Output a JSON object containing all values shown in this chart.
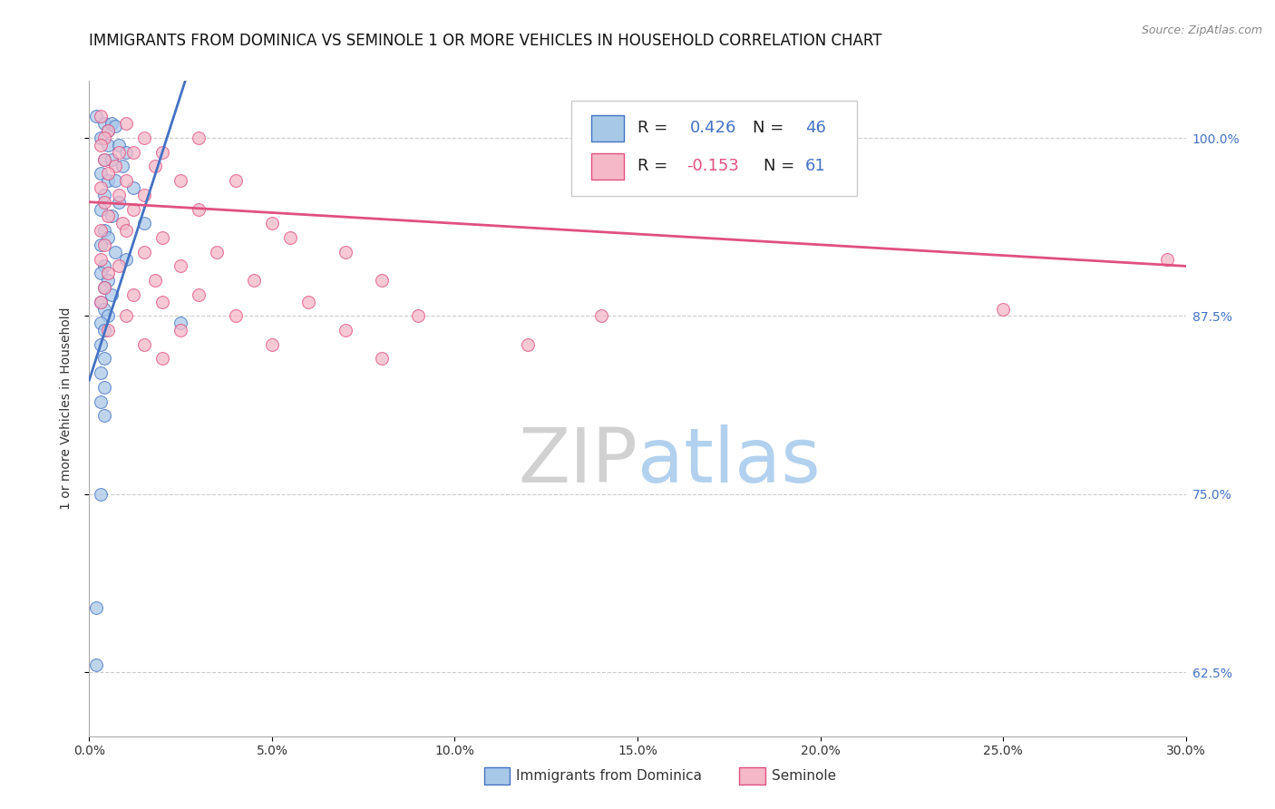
{
  "title": "IMMIGRANTS FROM DOMINICA VS SEMINOLE 1 OR MORE VEHICLES IN HOUSEHOLD CORRELATION CHART",
  "source": "Source: ZipAtlas.com",
  "ylabel": "1 or more Vehicles in Household",
  "legend_label1": "Immigrants from Dominica",
  "legend_label2": "Seminole",
  "R1": 0.426,
  "N1": 46,
  "R2": -0.153,
  "N2": 61,
  "xlim": [
    0.0,
    30.0
  ],
  "ylim": [
    58.0,
    104.0
  ],
  "xtick_labels": [
    "0.0%",
    "5.0%",
    "10.0%",
    "15.0%",
    "20.0%",
    "25.0%",
    "30.0%"
  ],
  "xtick_vals": [
    0.0,
    5.0,
    10.0,
    15.0,
    20.0,
    25.0,
    30.0
  ],
  "ytick_labels": [
    "62.5%",
    "75.0%",
    "87.5%",
    "100.0%"
  ],
  "ytick_vals": [
    62.5,
    75.0,
    87.5,
    100.0
  ],
  "color_blue": "#a8c8e8",
  "color_pink": "#f4b8c8",
  "line_blue": "#4472c4",
  "line_pink": "#e05080",
  "blue_scatter": [
    [
      0.2,
      101.5
    ],
    [
      0.4,
      101.0
    ],
    [
      0.5,
      100.5
    ],
    [
      0.6,
      101.0
    ],
    [
      0.7,
      100.8
    ],
    [
      0.3,
      100.0
    ],
    [
      0.5,
      99.5
    ],
    [
      0.8,
      99.5
    ],
    [
      1.0,
      99.0
    ],
    [
      0.4,
      98.5
    ],
    [
      0.6,
      98.5
    ],
    [
      0.9,
      98.0
    ],
    [
      0.3,
      97.5
    ],
    [
      0.5,
      97.0
    ],
    [
      0.7,
      97.0
    ],
    [
      1.2,
      96.5
    ],
    [
      0.4,
      96.0
    ],
    [
      0.8,
      95.5
    ],
    [
      0.3,
      95.0
    ],
    [
      0.6,
      94.5
    ],
    [
      1.5,
      94.0
    ],
    [
      0.4,
      93.5
    ],
    [
      0.5,
      93.0
    ],
    [
      0.3,
      92.5
    ],
    [
      0.7,
      92.0
    ],
    [
      1.0,
      91.5
    ],
    [
      0.4,
      91.0
    ],
    [
      0.3,
      90.5
    ],
    [
      0.5,
      90.0
    ],
    [
      0.4,
      89.5
    ],
    [
      0.6,
      89.0
    ],
    [
      0.3,
      88.5
    ],
    [
      0.4,
      88.0
    ],
    [
      0.5,
      87.5
    ],
    [
      0.3,
      87.0
    ],
    [
      2.5,
      87.0
    ],
    [
      0.4,
      86.5
    ],
    [
      0.3,
      85.5
    ],
    [
      0.4,
      84.5
    ],
    [
      0.3,
      83.5
    ],
    [
      0.4,
      82.5
    ],
    [
      0.3,
      81.5
    ],
    [
      0.4,
      80.5
    ],
    [
      0.3,
      75.0
    ],
    [
      0.2,
      67.0
    ],
    [
      0.2,
      63.0
    ]
  ],
  "pink_scatter": [
    [
      0.3,
      101.5
    ],
    [
      1.0,
      101.0
    ],
    [
      0.5,
      100.5
    ],
    [
      0.4,
      100.0
    ],
    [
      1.5,
      100.0
    ],
    [
      3.0,
      100.0
    ],
    [
      0.3,
      99.5
    ],
    [
      0.8,
      99.0
    ],
    [
      1.2,
      99.0
    ],
    [
      2.0,
      99.0
    ],
    [
      0.4,
      98.5
    ],
    [
      0.7,
      98.0
    ],
    [
      1.8,
      98.0
    ],
    [
      0.5,
      97.5
    ],
    [
      1.0,
      97.0
    ],
    [
      2.5,
      97.0
    ],
    [
      4.0,
      97.0
    ],
    [
      0.3,
      96.5
    ],
    [
      0.8,
      96.0
    ],
    [
      1.5,
      96.0
    ],
    [
      0.4,
      95.5
    ],
    [
      1.2,
      95.0
    ],
    [
      3.0,
      95.0
    ],
    [
      0.5,
      94.5
    ],
    [
      0.9,
      94.0
    ],
    [
      5.0,
      94.0
    ],
    [
      0.3,
      93.5
    ],
    [
      1.0,
      93.5
    ],
    [
      2.0,
      93.0
    ],
    [
      5.5,
      93.0
    ],
    [
      0.4,
      92.5
    ],
    [
      1.5,
      92.0
    ],
    [
      3.5,
      92.0
    ],
    [
      7.0,
      92.0
    ],
    [
      0.3,
      91.5
    ],
    [
      0.8,
      91.0
    ],
    [
      2.5,
      91.0
    ],
    [
      0.5,
      90.5
    ],
    [
      1.8,
      90.0
    ],
    [
      4.5,
      90.0
    ],
    [
      8.0,
      90.0
    ],
    [
      0.4,
      89.5
    ],
    [
      1.2,
      89.0
    ],
    [
      3.0,
      89.0
    ],
    [
      0.3,
      88.5
    ],
    [
      2.0,
      88.5
    ],
    [
      6.0,
      88.5
    ],
    [
      1.0,
      87.5
    ],
    [
      4.0,
      87.5
    ],
    [
      9.0,
      87.5
    ],
    [
      0.5,
      86.5
    ],
    [
      2.5,
      86.5
    ],
    [
      7.0,
      86.5
    ],
    [
      1.5,
      85.5
    ],
    [
      5.0,
      85.5
    ],
    [
      12.0,
      85.5
    ],
    [
      2.0,
      84.5
    ],
    [
      8.0,
      84.5
    ],
    [
      14.0,
      87.5
    ],
    [
      25.0,
      88.0
    ],
    [
      29.5,
      91.5
    ]
  ],
  "watermark_zip": "ZIP",
  "watermark_atlas": "atlas",
  "background_color": "#ffffff",
  "grid_color": "#cccccc",
  "title_fontsize": 12,
  "axis_label_fontsize": 10,
  "tick_fontsize": 10,
  "source_fontsize": 9
}
